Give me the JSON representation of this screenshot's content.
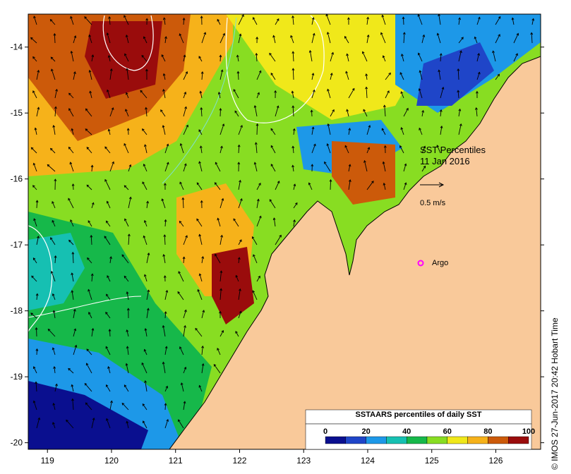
{
  "map": {
    "title_line1": "SST Percentiles",
    "title_line2": "11 Jan 2016",
    "vector_scale_label": "0.5 m/s",
    "float_label": "Argo",
    "x_ticks": [
      "119",
      "120",
      "121",
      "122",
      "123",
      "124",
      "125",
      "126"
    ],
    "y_ticks": [
      "-14",
      "-15",
      "-16",
      "-17",
      "-18",
      "-19",
      "-20"
    ],
    "lon_range": [
      118.7,
      126.7
    ],
    "lat_range": [
      -20.1,
      -13.5
    ],
    "land_color": "#f9c99a",
    "float_color": "#ff00ff"
  },
  "colorbar": {
    "title": "SSTAARS percentiles of daily SST",
    "tick_labels": [
      "0",
      "20",
      "40",
      "60",
      "80",
      "100"
    ],
    "colors": [
      "#0a0f8f",
      "#1f45c8",
      "#1d98e8",
      "#16c0b2",
      "#16b84a",
      "#88dd22",
      "#f0e81a",
      "#f6b21a",
      "#cc5a0a",
      "#9a0c0c"
    ]
  },
  "credit": "© IMOS 27-Jun-2017 20:42 Hobart Time"
}
